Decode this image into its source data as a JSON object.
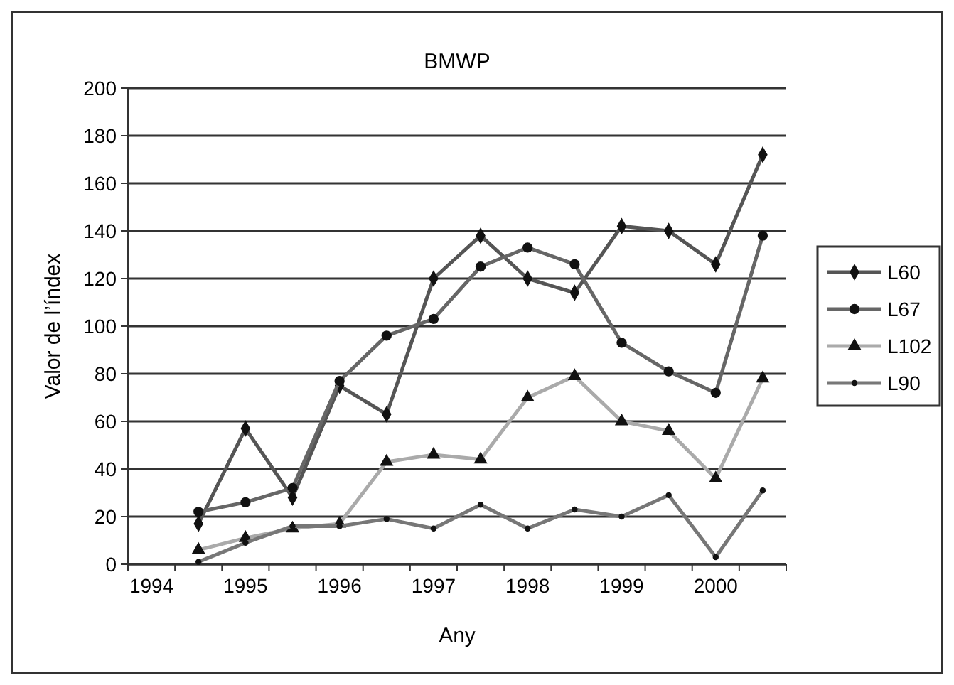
{
  "chart_data": {
    "type": "line",
    "title": "BMWP",
    "xlabel": "Any",
    "ylabel": "Valor de l’índex",
    "categories": [
      "1994",
      null,
      "1995",
      null,
      "1996",
      null,
      "1997",
      null,
      "1998",
      null,
      "1999",
      null,
      "2000",
      null
    ],
    "ylim": [
      0,
      200
    ],
    "yticks": [
      0,
      20,
      40,
      60,
      80,
      100,
      120,
      140,
      160,
      180,
      200
    ],
    "grid": "y",
    "legend": "right",
    "line_style": "solid",
    "series": [
      {
        "name": "L60",
        "color": "#555555",
        "marker": "diamond",
        "values": [
          null,
          17,
          57,
          28,
          75,
          63,
          120,
          138,
          120,
          114,
          142,
          140,
          126,
          172
        ]
      },
      {
        "name": "L67",
        "color": "#666666",
        "marker": "circle",
        "values": [
          null,
          22,
          26,
          32,
          77,
          96,
          103,
          125,
          133,
          126,
          93,
          81,
          72,
          138
        ]
      },
      {
        "name": "L102",
        "color": "#aaaaaa",
        "marker": "triangle",
        "values": [
          null,
          6,
          11,
          15,
          17,
          43,
          46,
          44,
          70,
          79,
          60,
          56,
          36,
          78
        ]
      },
      {
        "name": "L90",
        "color": "#777777",
        "marker": "circle",
        "values": [
          null,
          1,
          9,
          16,
          16,
          19,
          15,
          25,
          15,
          23,
          20,
          29,
          3,
          31
        ]
      }
    ]
  }
}
